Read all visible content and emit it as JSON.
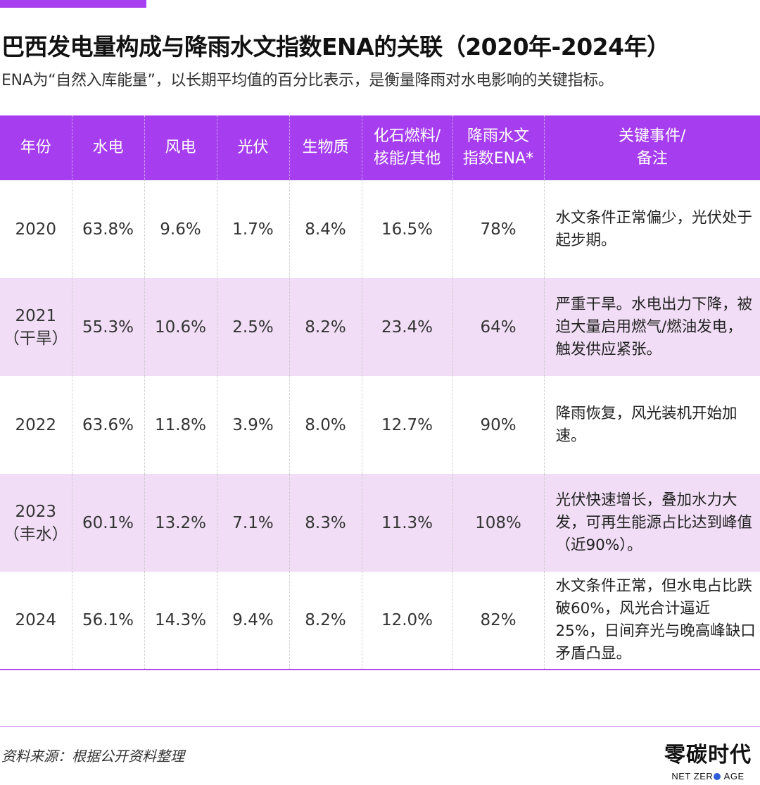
{
  "title": "巴西发电量构成与降雨水文指数ENA的关联（2020年-2024年）",
  "subtitle": "ENA为“自然入库能量”，以长期平均值的百分比表示，是衡量降雨对水电影响的关键指标。",
  "table": {
    "headers": [
      {
        "line1": "年份",
        "line2": ""
      },
      {
        "line1": "水电",
        "line2": ""
      },
      {
        "line1": "风电",
        "line2": ""
      },
      {
        "line1": "光伏",
        "line2": ""
      },
      {
        "line1": "生物质",
        "line2": ""
      },
      {
        "line1": "化石燃料/",
        "line2": "核能/其他"
      },
      {
        "line1": "降雨水文",
        "line2": "指数ENA*"
      },
      {
        "line1": "关键事件/",
        "line2": "备注"
      }
    ],
    "rows": [
      {
        "year": "2020",
        "tag": "",
        "hydro": "63.8%",
        "wind": "9.6%",
        "solar": "1.7%",
        "biomass": "8.4%",
        "fossil": "16.5%",
        "ena": "78%",
        "note": "水文条件正常偏少，光伏处于起步期。"
      },
      {
        "year": "2021",
        "tag": "（干旱）",
        "hydro": "55.3%",
        "wind": "10.6%",
        "solar": "2.5%",
        "biomass": "8.2%",
        "fossil": "23.4%",
        "ena": "64%",
        "note": "严重干旱。水电出力下降，被迫大量启用燃气/燃油发电，触发供应紧张。"
      },
      {
        "year": "2022",
        "tag": "",
        "hydro": "63.6%",
        "wind": "11.8%",
        "solar": "3.9%",
        "biomass": "8.0%",
        "fossil": "12.7%",
        "ena": "90%",
        "note": "降雨恢复，风光装机开始加速。"
      },
      {
        "year": "2023",
        "tag": "（丰水）",
        "hydro": "60.1%",
        "wind": "13.2%",
        "solar": "7.1%",
        "biomass": "8.3%",
        "fossil": "11.3%",
        "ena": "108%",
        "note": "光伏快速增长，叠加水力大发，可再生能源占比达到峰值（近90%）。"
      },
      {
        "year": "2024",
        "tag": "",
        "hydro": "56.1%",
        "wind": "14.3%",
        "solar": "9.4%",
        "biomass": "8.2%",
        "fossil": "12.0%",
        "ena": "82%",
        "note": "水文条件正常，但水电占比跌破60%，风光合计逼近25%，日间弃光与晚高峰缺口矛盾凸显。"
      }
    ]
  },
  "source": "资料来源：根据公开资料整理",
  "logo": {
    "cn": "零碳时代",
    "en_left": "NET ZER",
    "en_right": " AGE"
  },
  "colors": {
    "accent": "#a63ef0",
    "row_alt": "#f1def6"
  }
}
